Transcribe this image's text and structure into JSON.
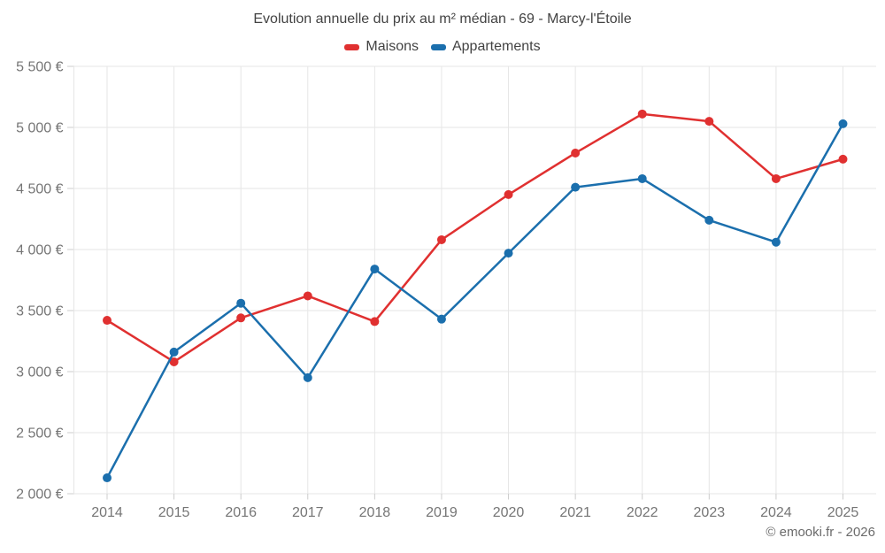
{
  "chart_data": {
    "type": "line",
    "title": "Evolution annuelle du prix au m² médian - 69 - Marcy-l'Étoile",
    "footer": "© emooki.fr - 2026",
    "categories": [
      "2014",
      "2015",
      "2016",
      "2017",
      "2018",
      "2019",
      "2020",
      "2021",
      "2022",
      "2023",
      "2024",
      "2025"
    ],
    "series": [
      {
        "name": "Maisons",
        "color": "#e03030",
        "values": [
          3420,
          3080,
          3440,
          3620,
          3410,
          4080,
          4450,
          4790,
          5110,
          5050,
          4580,
          4740
        ]
      },
      {
        "name": "Appartements",
        "color": "#1b6fad",
        "values": [
          2130,
          3160,
          3560,
          2950,
          3840,
          3430,
          3970,
          4510,
          4580,
          4240,
          4060,
          5030
        ]
      }
    ],
    "ylim": [
      2000,
      5500
    ],
    "ytick_step": 500,
    "yticks": [
      {
        "value": 2000,
        "label": "2 000 €"
      },
      {
        "value": 2500,
        "label": "2 500 €"
      },
      {
        "value": 3000,
        "label": "3 000 €"
      },
      {
        "value": 3500,
        "label": "3 500 €"
      },
      {
        "value": 4000,
        "label": "4 000 €"
      },
      {
        "value": 4500,
        "label": "4 500 €"
      },
      {
        "value": 5000,
        "label": "5 000 €"
      },
      {
        "value": 5500,
        "label": "5 500 €"
      }
    ],
    "grid": true,
    "legend_position": "top",
    "colors": {
      "gridline": "#e6e6e6",
      "tick": "#cccccc",
      "axis_label": "#757575",
      "title_text": "#434343"
    }
  }
}
